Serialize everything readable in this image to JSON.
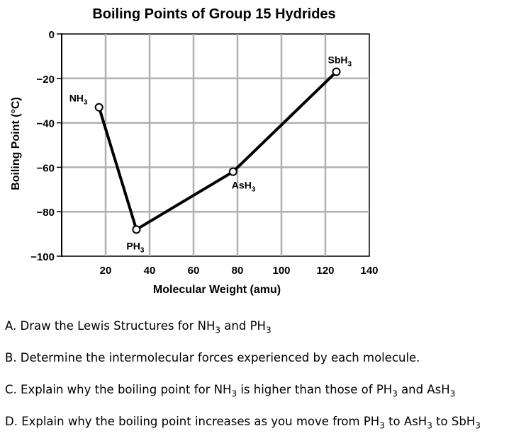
{
  "chart_data": {
    "type": "line",
    "title": "Boiling Points of Group 15 Hydrides",
    "xlabel": "Molecular Weight (amu)",
    "ylabel": "Boiling Point (°C)",
    "xlim": [
      0,
      140
    ],
    "ylim": [
      -100,
      0
    ],
    "x_ticks": [
      20,
      40,
      60,
      80,
      100,
      120,
      140
    ],
    "y_ticks": [
      0,
      -20,
      -40,
      -60,
      -80,
      -100
    ],
    "grid": true,
    "points": [
      {
        "x": 17,
        "y": -33,
        "label": "NH",
        "sub": "3"
      },
      {
        "x": 34,
        "y": -88,
        "label": "PH",
        "sub": "3"
      },
      {
        "x": 78,
        "y": -62,
        "label": "AsH",
        "sub": "3"
      },
      {
        "x": 125,
        "y": -17,
        "label": "SbH",
        "sub": "3"
      }
    ]
  },
  "questions": [
    {
      "pre": "A. Draw the Lewis Structures for NH",
      "s1": "3",
      "mid": " and PH",
      "s2": "3",
      "mid2": "",
      "s3": "",
      "post": ""
    },
    {
      "pre": "B. Determine the intermolecular forces experienced by each molecule.",
      "s1": "",
      "mid": "",
      "s2": "",
      "mid2": "",
      "s3": "",
      "post": ""
    },
    {
      "pre": "C. Explain why the boiling point for NH",
      "s1": "3",
      "mid": " is higher than those of PH",
      "s2": "3",
      "mid2": " and AsH",
      "s3": "3",
      "post": ""
    },
    {
      "pre": "D. Explain why the boiling point increases as you move from PH",
      "s1": "3",
      "mid": " to AsH",
      "s2": "3",
      "mid2": " to SbH",
      "s3": "3",
      "post": ""
    }
  ]
}
